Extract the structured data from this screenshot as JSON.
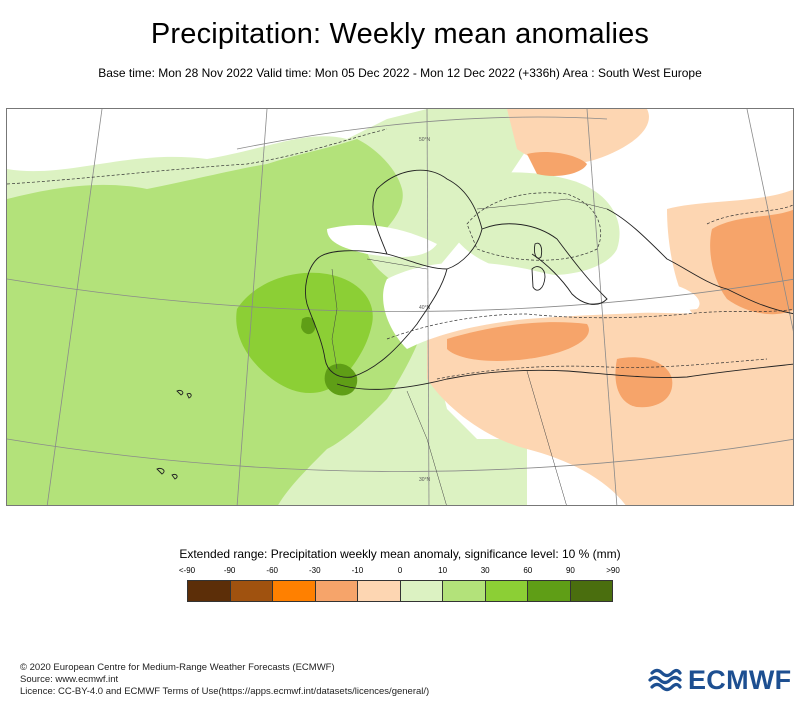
{
  "header": {
    "title": "Precipitation: Weekly mean anomalies",
    "subtitle": "Base time: Mon 28 Nov 2022 Valid time: Mon 05 Dec 2022 - Mon 12 Dec 2022 (+336h) Area : South West Europe"
  },
  "map": {
    "graticule_labels": [
      "30°N",
      "40°N",
      "50°N"
    ],
    "region": "South West Europe"
  },
  "legend": {
    "title": "Extended range: Precipitation weekly mean anomaly, significance level: 10 % (mm)",
    "labels": [
      "<-90",
      "-90",
      "-60",
      "-30",
      "-10",
      "0",
      "10",
      "30",
      "60",
      "90",
      ">90"
    ],
    "colors": [
      "#5c2e08",
      "#a0520f",
      "#ff8000",
      "#f6a46a",
      "#fdd6b2",
      "#dcf2c2",
      "#b3e27a",
      "#8ccf35",
      "#5f9e16",
      "#4a6e0e"
    ]
  },
  "footer": {
    "line1": "© 2020 European Centre for Medium-Range Weather Forecasts (ECMWF)",
    "line2": "Source: www.ecmwf.int",
    "line3": "Licence: CC-BY-4.0 and ECMWF Terms of Use(https://apps.ecmwf.int/datasets/licences/general/)"
  },
  "logo": {
    "text": "ECMWF",
    "color": "#1d4f91"
  }
}
